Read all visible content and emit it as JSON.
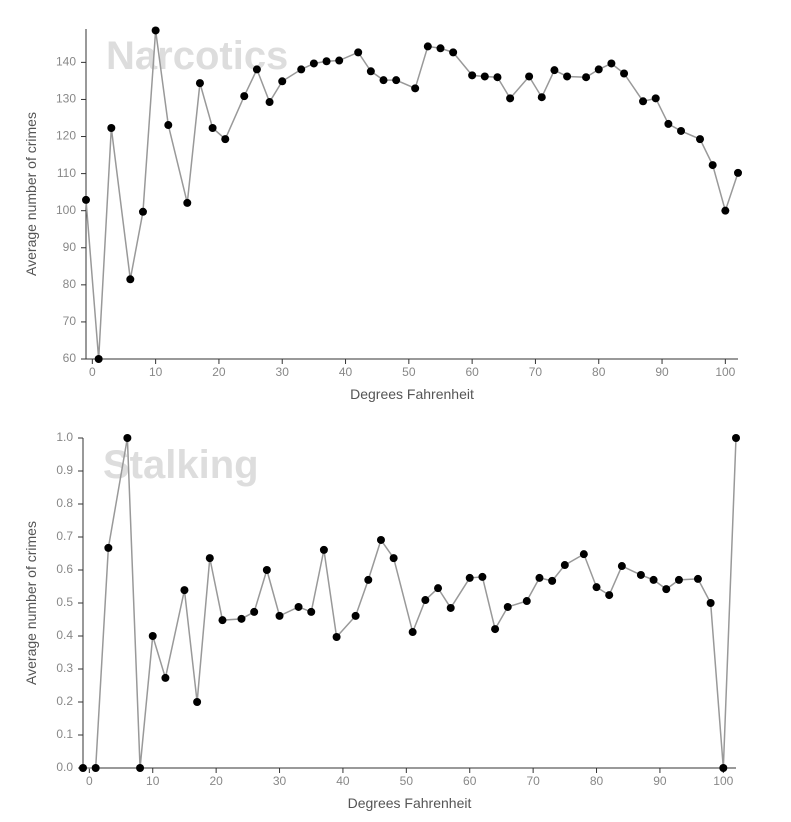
{
  "chart_data": [
    {
      "type": "line",
      "title": "Narcotics",
      "x_label": "Degrees Fahrenheit",
      "y_label": "Average number of crimes",
      "color": "#999999",
      "marker_color": "#000000",
      "x": [
        -1,
        1,
        3,
        6,
        8,
        10,
        12,
        15,
        17,
        19,
        21,
        24,
        26,
        28,
        30,
        33,
        35,
        37,
        39,
        42,
        44,
        46,
        48,
        51,
        53,
        55,
        57,
        60,
        62,
        64,
        66,
        69,
        71,
        73,
        75,
        78,
        80,
        82,
        84,
        87,
        89,
        91,
        93,
        96,
        98,
        100,
        102
      ],
      "values": [
        102.9,
        60,
        122.3,
        81.5,
        99.7,
        148.6,
        123.1,
        102.1,
        134.4,
        122.3,
        119.3,
        130.9,
        138.1,
        129.3,
        134.9,
        138.1,
        139.7,
        140.3,
        140.5,
        142.7,
        137.6,
        135.2,
        135.2,
        133,
        144.3,
        143.8,
        142.7,
        136.5,
        136.2,
        136,
        130.3,
        136.2,
        130.6,
        137.9,
        136.2,
        136,
        138.1,
        139.7,
        137,
        129.5,
        130.3,
        123.4,
        121.5,
        119.3,
        112.3,
        100,
        110.2
      ],
      "xlim": [
        -1,
        102
      ],
      "ylim": [
        60,
        149
      ],
      "xticks": [
        0,
        10,
        20,
        30,
        40,
        50,
        60,
        70,
        80,
        90,
        100
      ],
      "yticks": [
        60,
        70,
        80,
        90,
        100,
        110,
        120,
        130,
        140
      ]
    },
    {
      "type": "line",
      "title": "Stalking",
      "x_label": "Degrees Fahrenheit",
      "y_label": "Average number of crimes",
      "color": "#999999",
      "marker_color": "#000000",
      "x": [
        -1,
        1,
        3,
        6,
        8,
        10,
        12,
        15,
        17,
        19,
        21,
        24,
        26,
        28,
        30,
        33,
        35,
        37,
        39,
        42,
        44,
        46,
        48,
        51,
        53,
        55,
        57,
        60,
        62,
        64,
        66,
        69,
        71,
        73,
        75,
        78,
        80,
        82,
        84,
        87,
        89,
        91,
        93,
        96,
        98,
        100,
        102
      ],
      "values": [
        0,
        0,
        0.667,
        1,
        0,
        0.4,
        0.273,
        0.539,
        0.2,
        0.636,
        0.448,
        0.452,
        0.473,
        0.6,
        0.461,
        0.488,
        0.473,
        0.661,
        0.397,
        0.461,
        0.57,
        0.691,
        0.636,
        0.412,
        0.509,
        0.545,
        0.485,
        0.576,
        0.579,
        0.421,
        0.488,
        0.506,
        0.576,
        0.567,
        0.615,
        0.648,
        0.548,
        0.524,
        0.612,
        0.585,
        0.57,
        0.542,
        0.57,
        0.573,
        0.5,
        0,
        1
      ],
      "xlim": [
        -1,
        102
      ],
      "ylim": [
        0,
        1
      ],
      "xticks": [
        0,
        10,
        20,
        30,
        40,
        50,
        60,
        70,
        80,
        90,
        100
      ],
      "yticks": [
        {
          "value": 0,
          "label": "0.0"
        },
        0.1,
        0.2,
        0.3,
        0.4,
        0.5,
        0.6,
        0.7,
        0.8,
        0.9,
        {
          "value": 1,
          "label": "1.0"
        }
      ]
    }
  ]
}
